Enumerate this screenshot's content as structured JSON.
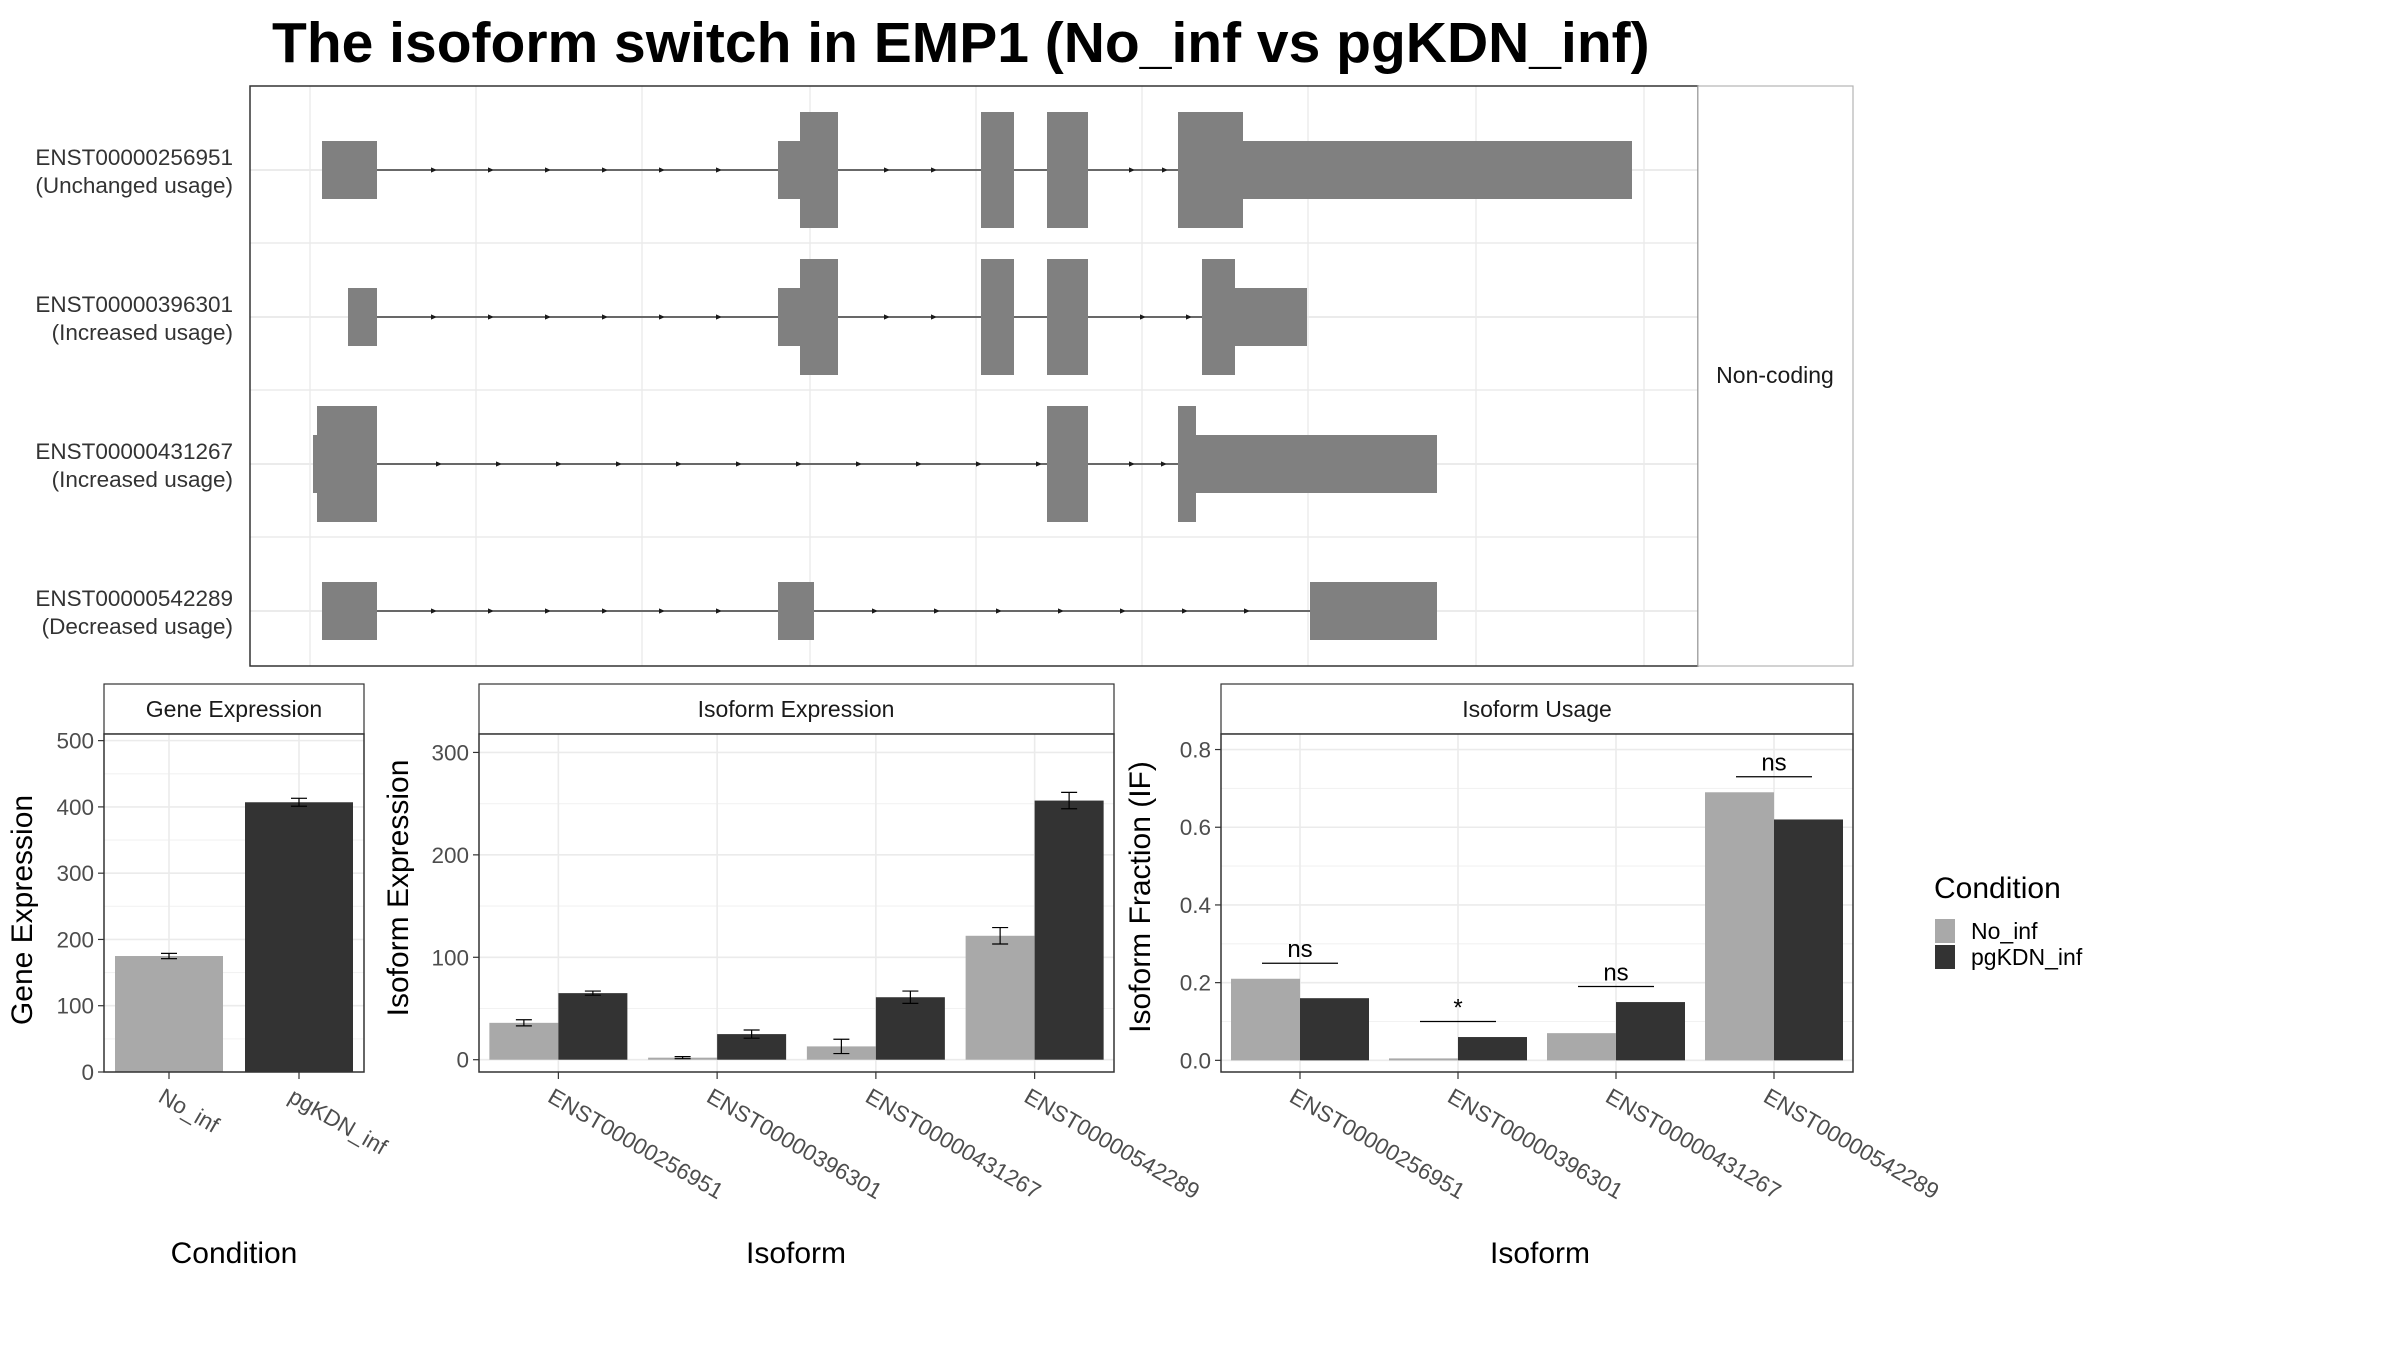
{
  "title": "The isoform switch in EMP1 (No_inf vs pgKDN_inf)",
  "colors": {
    "No_inf": "#a9a9a9",
    "pgKDN_inf": "#333333",
    "structure": "#808080"
  },
  "chart_data": [
    {
      "type": "gene-structure",
      "facet_label": "Non-coding",
      "rows": [
        {
          "id": "ENST00000256951",
          "usage": "(Unchanged usage)"
        },
        {
          "id": "ENST00000396301",
          "usage": "(Increased usage)"
        },
        {
          "id": "ENST00000431267",
          "usage": "(Increased usage)"
        },
        {
          "id": "ENST00000542289",
          "usage": "(Decreased usage)"
        }
      ]
    },
    {
      "type": "bar",
      "strip": "Gene Expression",
      "xlabel": "Condition",
      "ylabel": "Gene Expression",
      "categories": [
        "No_inf",
        "pgKDN_inf"
      ],
      "values": [
        175,
        407
      ],
      "errors": [
        4,
        6
      ],
      "ylim": [
        0,
        510
      ],
      "yticks": [
        0,
        100,
        200,
        300,
        400,
        500
      ]
    },
    {
      "type": "bar",
      "strip": "Isoform Expression",
      "xlabel": "Isoform",
      "ylabel": "Isoform Expression",
      "categories": [
        "ENST00000256951",
        "ENST00000396301",
        "ENST00000431267",
        "ENST00000542289"
      ],
      "series": [
        {
          "name": "No_inf",
          "values": [
            36,
            2,
            13,
            121
          ],
          "errors": [
            3,
            1,
            7,
            8
          ]
        },
        {
          "name": "pgKDN_inf",
          "values": [
            65,
            25,
            61,
            253
          ],
          "errors": [
            2,
            4,
            6,
            8
          ]
        }
      ],
      "ylim": [
        -12,
        318
      ],
      "yticks": [
        0,
        100,
        200,
        300
      ]
    },
    {
      "type": "bar",
      "strip": "Isoform Usage",
      "xlabel": "Isoform",
      "ylabel": "Isoform Fraction (IF)",
      "categories": [
        "ENST00000256951",
        "ENST00000396301",
        "ENST00000431267",
        "ENST00000542289"
      ],
      "series": [
        {
          "name": "No_inf",
          "values": [
            0.21,
            0.005,
            0.07,
            0.69
          ]
        },
        {
          "name": "pgKDN_inf",
          "values": [
            0.16,
            0.06,
            0.15,
            0.62
          ]
        }
      ],
      "significance": [
        "ns",
        "*",
        "ns",
        "ns"
      ],
      "ylim": [
        -0.03,
        0.84
      ],
      "yticks": [
        "0.0",
        "0.2",
        "0.4",
        "0.6",
        "0.8"
      ]
    }
  ],
  "legend": {
    "title": "Condition",
    "items": [
      "No_inf",
      "pgKDN_inf"
    ]
  }
}
